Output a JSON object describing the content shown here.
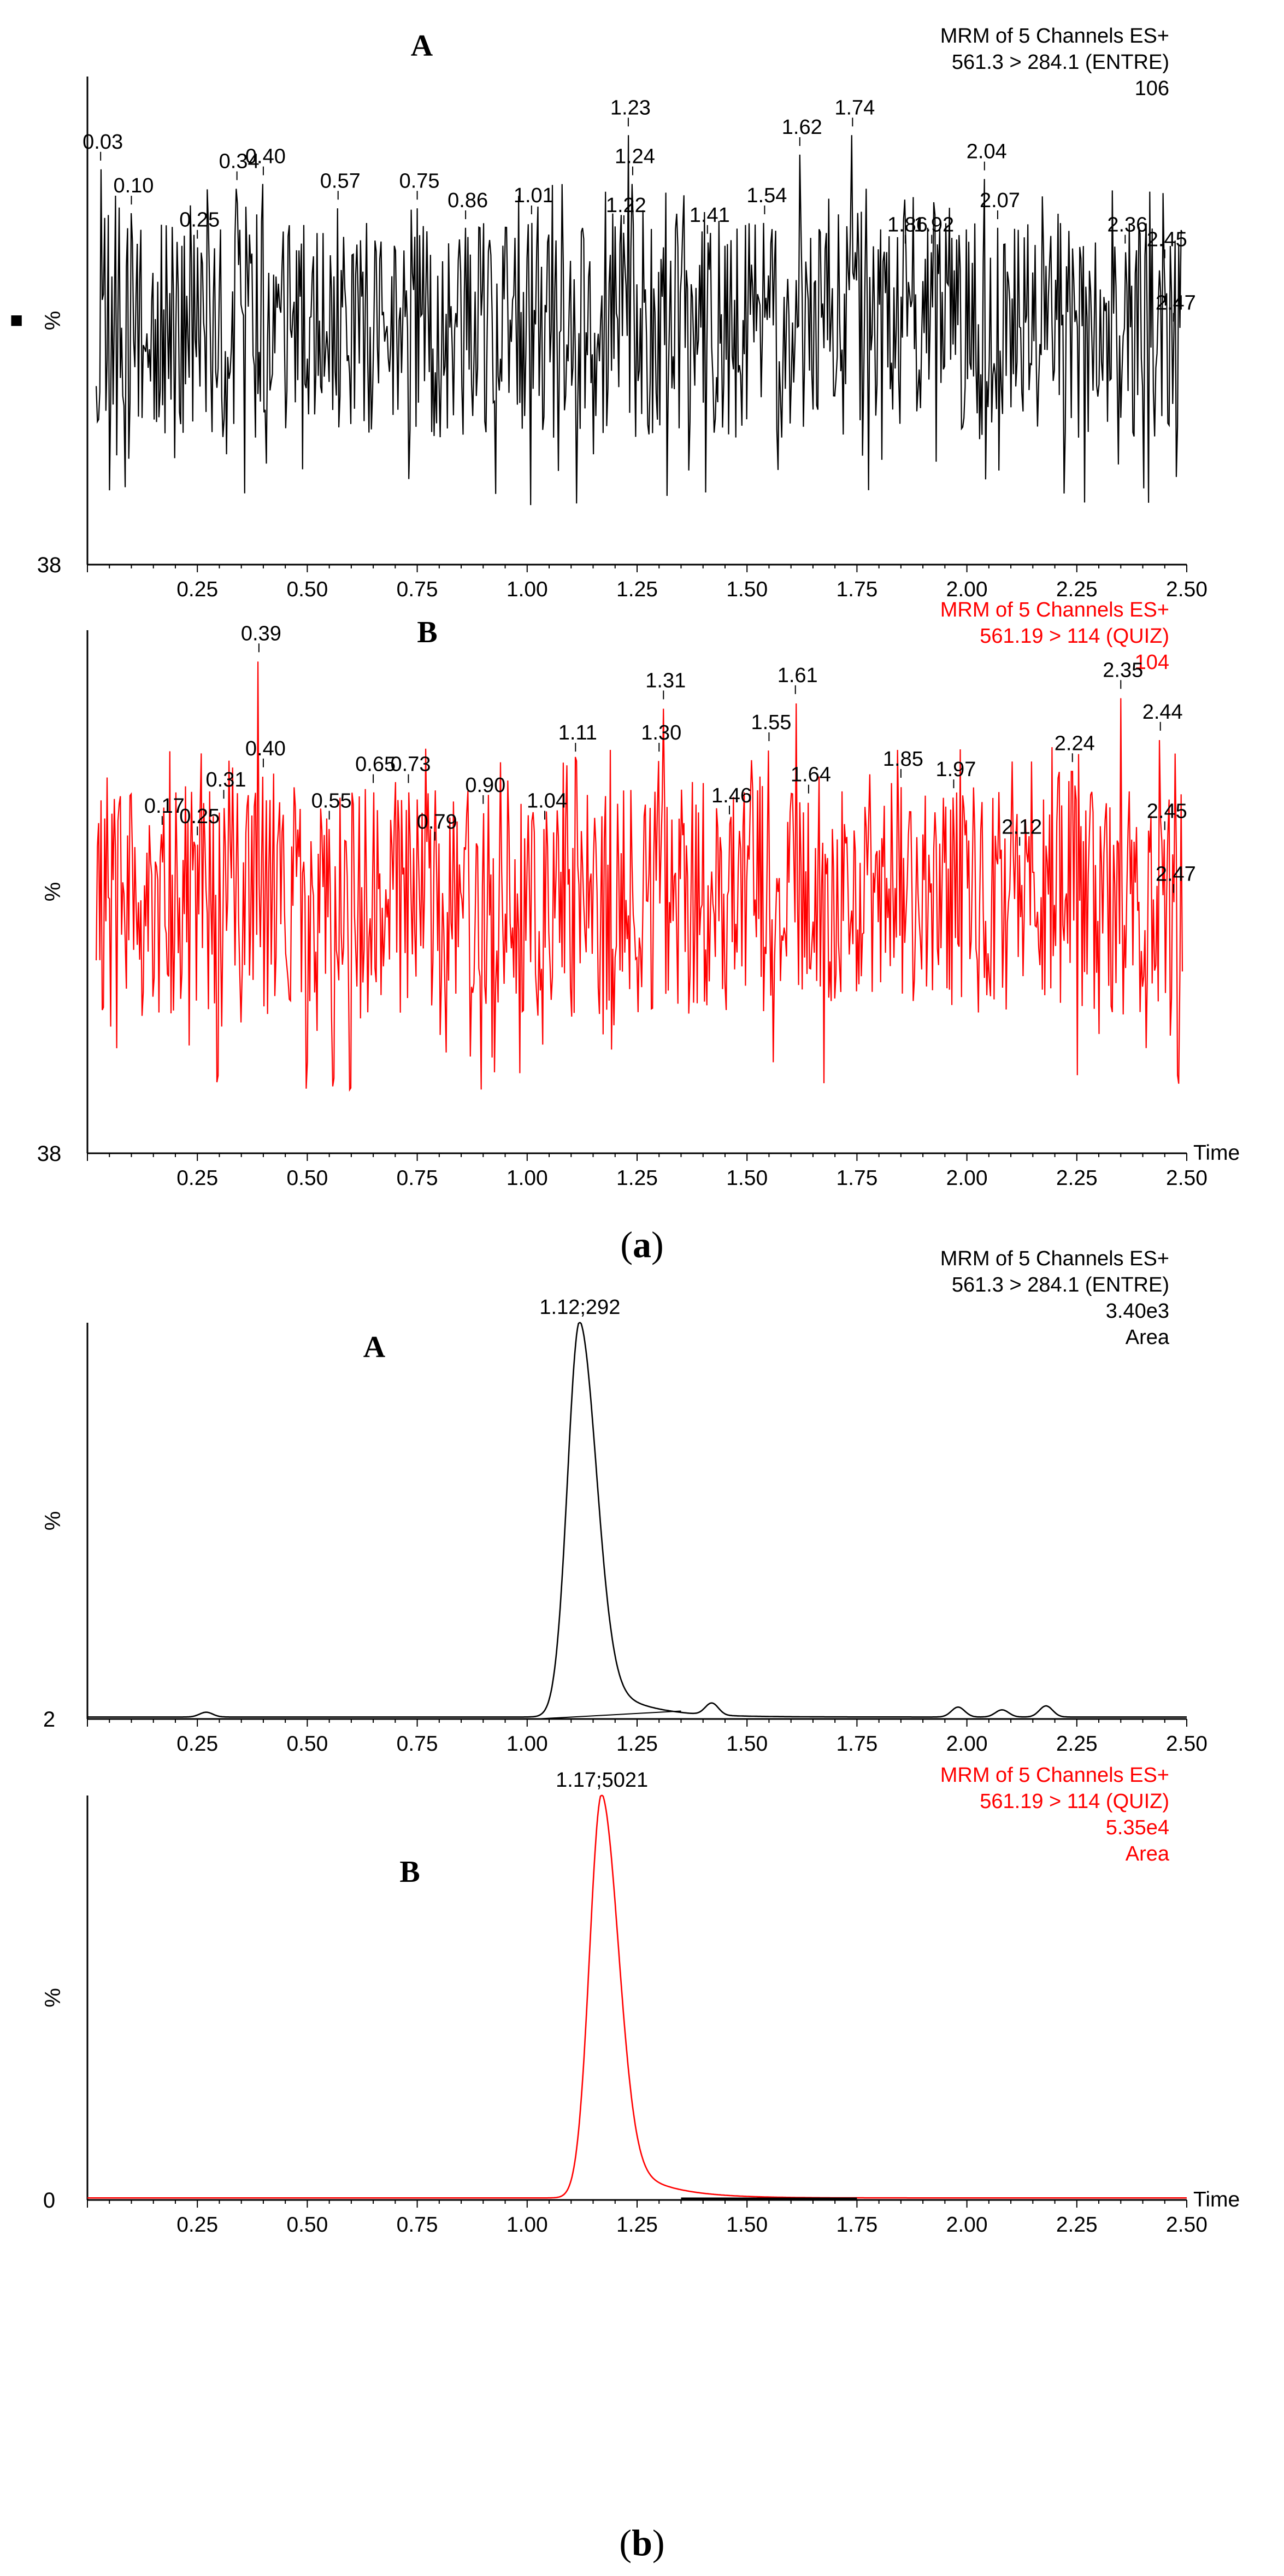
{
  "figure": {
    "caption_a": "(a)",
    "caption_b": "(b)",
    "caption_a_open": "(",
    "caption_a_letter": "a",
    "caption_a_close": ")",
    "caption_b_open": "(",
    "caption_b_letter": "b",
    "caption_b_close": ")"
  },
  "chart_data": [
    {
      "id": "a-A",
      "type": "line",
      "panel_letter": "A",
      "color": "#000000",
      "header": [
        "MRM of 5 Channels ES+",
        "561.3 > 284.1 (ENTRE)",
        "106"
      ],
      "ylabel": "%",
      "y_min_label": "38",
      "xlim": [
        0,
        2.5
      ],
      "xticks": [
        "0.25",
        "0.50",
        "0.75",
        "1.00",
        "1.25",
        "1.50",
        "1.75",
        "2.00",
        "2.25",
        "2.50"
      ],
      "xlabel": "",
      "marker": "■",
      "signal": "noise",
      "seed": 11,
      "peak_labels": [
        {
          "x": 0.03,
          "text": "0.03",
          "level": 0.83
        },
        {
          "x": 0.1,
          "text": "0.10",
          "level": 0.74
        },
        {
          "x": 0.25,
          "text": "0.25",
          "level": 0.67
        },
        {
          "x": 0.34,
          "text": "0.34",
          "level": 0.79
        },
        {
          "x": 0.4,
          "text": "0.40",
          "level": 0.8
        },
        {
          "x": 0.57,
          "text": "0.57",
          "level": 0.75
        },
        {
          "x": 0.75,
          "text": "0.75",
          "level": 0.75
        },
        {
          "x": 0.86,
          "text": "0.86",
          "level": 0.71
        },
        {
          "x": 1.01,
          "text": "1.01",
          "level": 0.72
        },
        {
          "x": 1.22,
          "text": "1.22",
          "level": 0.7
        },
        {
          "x": 1.23,
          "text": "1.23",
          "level": 0.9
        },
        {
          "x": 1.24,
          "text": "1.24",
          "level": 0.8
        },
        {
          "x": 1.41,
          "text": "1.41",
          "level": 0.68
        },
        {
          "x": 1.54,
          "text": "1.54",
          "level": 0.72
        },
        {
          "x": 1.62,
          "text": "1.62",
          "level": 0.86
        },
        {
          "x": 1.74,
          "text": "1.74",
          "level": 0.9
        },
        {
          "x": 1.86,
          "text": "1.86",
          "level": 0.66
        },
        {
          "x": 1.92,
          "text": "1.92",
          "level": 0.66
        },
        {
          "x": 2.04,
          "text": "2.04",
          "level": 0.81
        },
        {
          "x": 2.07,
          "text": "2.07",
          "level": 0.71
        },
        {
          "x": 2.36,
          "text": "2.36",
          "level": 0.66
        },
        {
          "x": 2.45,
          "text": "2.45",
          "level": 0.63
        },
        {
          "x": 2.47,
          "text": "2.47",
          "level": 0.5
        }
      ]
    },
    {
      "id": "a-B",
      "type": "line",
      "panel_letter": "B",
      "color": "#ff0000",
      "header": [
        "MRM of 5 Channels ES+",
        "561.19 > 114 (QUIZ)",
        "104"
      ],
      "ylabel": "%",
      "y_min_label": "38",
      "xlim": [
        0,
        2.5
      ],
      "xticks": [
        "0.25",
        "0.50",
        "0.75",
        "1.00",
        "1.25",
        "1.50",
        "1.75",
        "2.00",
        "2.25",
        "2.50"
      ],
      "xlabel": "Time",
      "signal": "noise",
      "seed": 29,
      "peak_labels": [
        {
          "x": 0.17,
          "text": "0.17",
          "level": 0.63
        },
        {
          "x": 0.25,
          "text": "0.25",
          "level": 0.61
        },
        {
          "x": 0.31,
          "text": "0.31",
          "level": 0.68
        },
        {
          "x": 0.39,
          "text": "0.39",
          "level": 0.96
        },
        {
          "x": 0.4,
          "text": "0.40",
          "level": 0.74
        },
        {
          "x": 0.55,
          "text": "0.55",
          "level": 0.64
        },
        {
          "x": 0.65,
          "text": "0.65",
          "level": 0.71
        },
        {
          "x": 0.73,
          "text": "0.73",
          "level": 0.71
        },
        {
          "x": 0.79,
          "text": "0.79",
          "level": 0.6
        },
        {
          "x": 0.9,
          "text": "0.90",
          "level": 0.67
        },
        {
          "x": 1.04,
          "text": "1.04",
          "level": 0.64
        },
        {
          "x": 1.11,
          "text": "1.11",
          "level": 0.77
        },
        {
          "x": 1.3,
          "text": "1.30",
          "level": 0.77
        },
        {
          "x": 1.31,
          "text": "1.31",
          "level": 0.87
        },
        {
          "x": 1.46,
          "text": "1.46",
          "level": 0.65
        },
        {
          "x": 1.55,
          "text": "1.55",
          "level": 0.79
        },
        {
          "x": 1.61,
          "text": "1.61",
          "level": 0.88
        },
        {
          "x": 1.64,
          "text": "1.64",
          "level": 0.69
        },
        {
          "x": 1.85,
          "text": "1.85",
          "level": 0.72
        },
        {
          "x": 1.97,
          "text": "1.97",
          "level": 0.7
        },
        {
          "x": 2.12,
          "text": "2.12",
          "level": 0.59
        },
        {
          "x": 2.24,
          "text": "2.24",
          "level": 0.75
        },
        {
          "x": 2.35,
          "text": "2.35",
          "level": 0.89
        },
        {
          "x": 2.44,
          "text": "2.44",
          "level": 0.81
        },
        {
          "x": 2.45,
          "text": "2.45",
          "level": 0.62
        },
        {
          "x": 2.47,
          "text": "2.47",
          "level": 0.5
        }
      ]
    },
    {
      "id": "b-A",
      "type": "line",
      "panel_letter": "A",
      "color": "#000000",
      "header": [
        "MRM of 5 Channels ES+",
        "561.3 > 284.1 (ENTRE)",
        "3.40e3",
        "Area"
      ],
      "ylabel": "%",
      "y_min_label": "2",
      "xlim": [
        0,
        2.5
      ],
      "xticks": [
        "0.25",
        "0.50",
        "0.75",
        "1.00",
        "1.25",
        "1.50",
        "1.75",
        "2.00",
        "2.25",
        "2.50"
      ],
      "xlabel": "",
      "signal": "peak",
      "peak_center": 1.12,
      "peak_label": "1.12;292",
      "baseline_bumps": [
        {
          "x": 0.27,
          "h": 0.012
        },
        {
          "x": 1.42,
          "h": 0.03
        },
        {
          "x": 1.98,
          "h": 0.025
        },
        {
          "x": 2.08,
          "h": 0.018
        },
        {
          "x": 2.18,
          "h": 0.028
        }
      ]
    },
    {
      "id": "b-B",
      "type": "line",
      "panel_letter": "B",
      "color": "#ff0000",
      "header": [
        "MRM of 5 Channels ES+",
        "561.19 > 114 (QUIZ)",
        "5.35e4",
        "Area"
      ],
      "ylabel": "%",
      "y_min_label": "0",
      "xlim": [
        0,
        2.5
      ],
      "xticks": [
        "0.25",
        "0.50",
        "0.75",
        "1.00",
        "1.25",
        "1.50",
        "1.75",
        "2.00",
        "2.25",
        "2.50"
      ],
      "xlabel": "Time",
      "signal": "peak",
      "peak_center": 1.17,
      "peak_label": "1.17;5021",
      "baseline_bumps": []
    }
  ]
}
